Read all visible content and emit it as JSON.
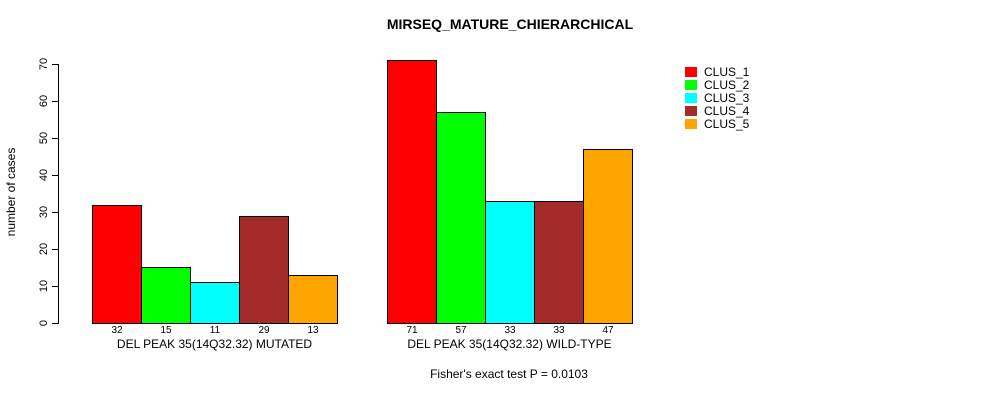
{
  "chart_data": {
    "type": "bar",
    "title": "MIRSEQ_MATURE_CHIERARCHICAL",
    "ylabel": "number of cases",
    "xlabel": "",
    "ylim": [
      0,
      70
    ],
    "yticks": [
      0,
      10,
      20,
      30,
      40,
      50,
      60,
      70
    ],
    "grid": false,
    "legend_position": "right",
    "bar_value_labels": true,
    "categories": [
      "DEL PEAK 35(14Q32.32) MUTATED",
      "DEL PEAK 35(14Q32.32) WILD-TYPE"
    ],
    "series": [
      {
        "name": "CLUS_1",
        "color": "#ff0000",
        "values": [
          32,
          71
        ]
      },
      {
        "name": "CLUS_2",
        "color": "#00ff00",
        "values": [
          15,
          57
        ]
      },
      {
        "name": "CLUS_3",
        "color": "#00ffff",
        "values": [
          11,
          33
        ]
      },
      {
        "name": "CLUS_4",
        "color": "#a52a2a",
        "values": [
          29,
          33
        ]
      },
      {
        "name": "CLUS_5",
        "color": "#ffa500",
        "values": [
          13,
          47
        ]
      }
    ],
    "annotation": "Fisher's exact test P = 0.0103"
  }
}
